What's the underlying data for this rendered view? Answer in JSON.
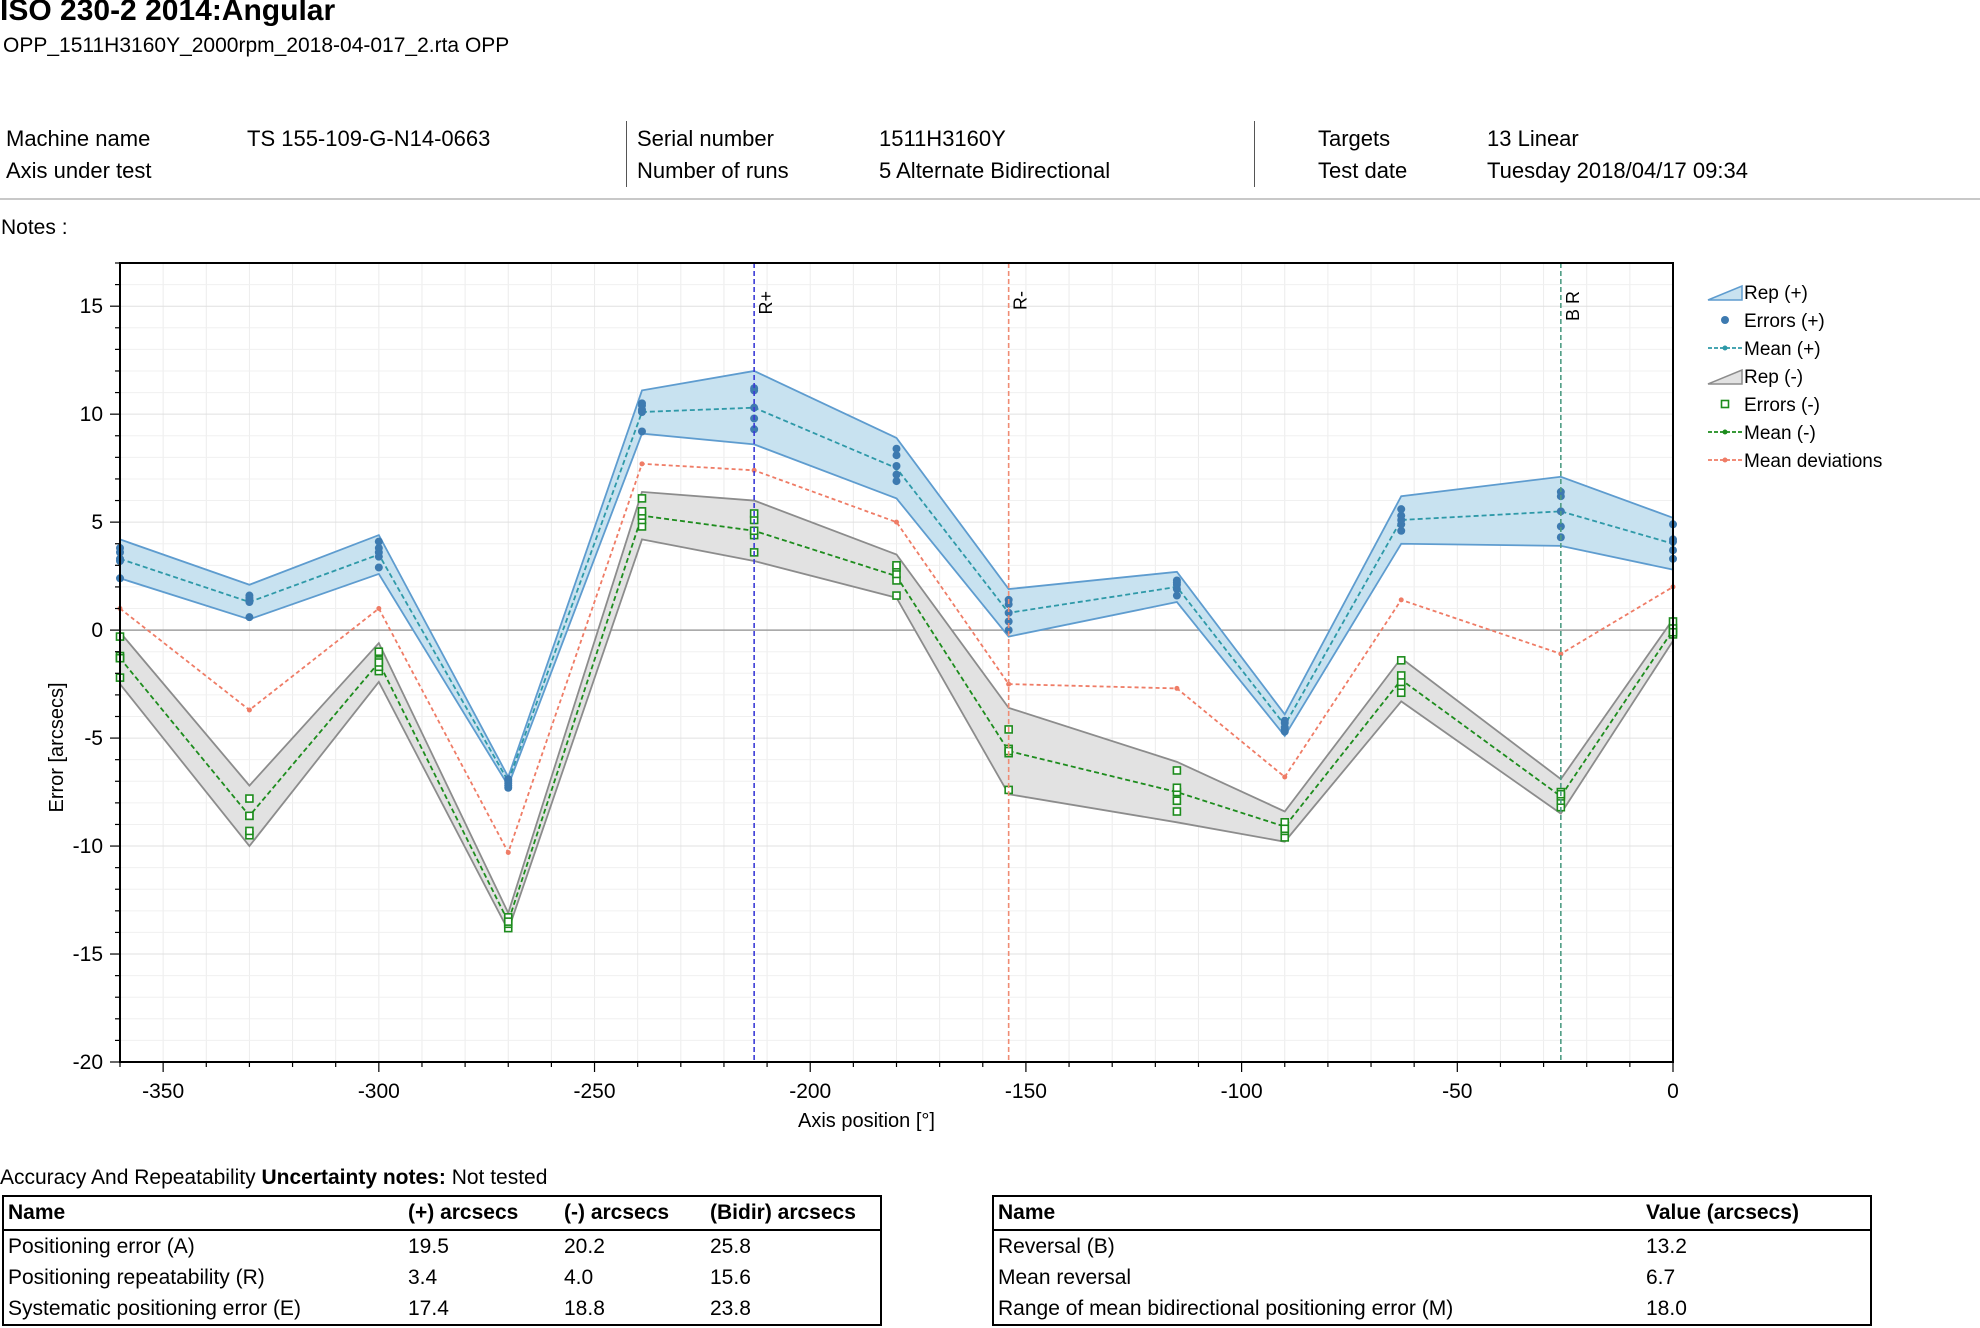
{
  "header": {
    "title": "ISO 230-2 2014:Angular",
    "subtitle": "OPP_1511H3160Y_2000rpm_2018-04-017_2.rta OPP"
  },
  "info": {
    "machine_name_label": "Machine name",
    "machine_name": "TS 155-109-G-N14-0663",
    "axis_label": "Axis under test",
    "serial_label": "Serial number",
    "serial": "1511H3160Y",
    "runs_label": "Number of runs",
    "runs": "5 Alternate Bidirectional",
    "targets_label": "Targets",
    "targets": "13 Linear",
    "date_label": "Test date",
    "date": "Tuesday 2018/04/17 09:34"
  },
  "notes_label": "Notes :",
  "chart_data": {
    "type": "line",
    "xlabel": "Axis position [°]",
    "ylabel": "Error [arcsecs]",
    "xlim": [
      -360,
      0
    ],
    "ylim": [
      -20,
      17
    ],
    "xticks": [
      -350,
      -300,
      -250,
      -200,
      -150,
      -100,
      -50,
      0
    ],
    "yticks": [
      15,
      10,
      5,
      0,
      -5,
      -10,
      -15,
      -20
    ],
    "grid": true,
    "legend_position": "top-right",
    "x": [
      -360,
      -332.3,
      -304.6,
      -276.9,
      -249.2,
      -221.5,
      -193.8,
      -166.2,
      -138.5,
      -110.8,
      -83.1,
      -55.4,
      -27.7,
      0
    ],
    "target_x": [
      -360,
      -330,
      -300,
      -270,
      -239,
      -213,
      -180,
      -154,
      -115,
      -90,
      -63,
      -26,
      0
    ],
    "mean_plus": [
      3.3,
      1.3,
      3.5,
      -7.0,
      10.1,
      10.3,
      7.5,
      0.8,
      2.0,
      -4.4,
      5.1,
      5.5,
      4.0
    ],
    "rep_plus_upper": [
      4.2,
      2.1,
      4.4,
      -6.8,
      11.1,
      12.0,
      8.9,
      1.9,
      2.7,
      -3.9,
      6.2,
      7.1,
      5.2
    ],
    "rep_plus_lower": [
      2.4,
      0.5,
      2.6,
      -7.2,
      9.1,
      8.6,
      6.1,
      -0.3,
      1.3,
      -4.9,
      4.0,
      3.9,
      2.8
    ],
    "errors_plus": [
      [
        2.4,
        3.2,
        3.8,
        3.6,
        3.3
      ],
      [
        0.6,
        1.3,
        1.6,
        1.4,
        1.5
      ],
      [
        2.9,
        3.4,
        3.8,
        4.1,
        3.6
      ],
      [
        -7.3,
        -7.2,
        -7.0,
        -6.9,
        -7.1
      ],
      [
        9.2,
        10.1,
        10.4,
        10.5,
        10.2
      ],
      [
        9.3,
        9.8,
        10.3,
        11.1,
        11.2
      ],
      [
        6.9,
        7.2,
        7.6,
        8.1,
        8.4
      ],
      [
        0.0,
        0.4,
        0.8,
        1.2,
        1.4
      ],
      [
        1.6,
        1.9,
        2.1,
        2.2,
        2.3
      ],
      [
        -4.7,
        -4.5,
        -4.3,
        -4.2,
        -4.6
      ],
      [
        4.6,
        4.9,
        5.1,
        5.3,
        5.6
      ],
      [
        4.3,
        4.8,
        5.5,
        6.2,
        6.4
      ],
      [
        3.3,
        3.7,
        4.1,
        4.2,
        4.9
      ]
    ],
    "mean_minus": [
      -1.3,
      -8.6,
      -1.5,
      -13.5,
      5.3,
      4.6,
      2.5,
      -5.6,
      -7.5,
      -9.1,
      -2.3,
      -7.7,
      0.0
    ],
    "rep_minus_upper": [
      -0.1,
      -7.2,
      -0.6,
      -13.1,
      6.4,
      6.0,
      3.5,
      -3.6,
      -6.1,
      -8.4,
      -1.3,
      -6.9,
      0.5
    ],
    "rep_minus_lower": [
      -2.5,
      -10.0,
      -2.4,
      -13.9,
      4.2,
      3.2,
      1.5,
      -7.6,
      -8.9,
      -9.8,
      -3.3,
      -8.5,
      -0.5
    ],
    "errors_minus": [
      [
        -2.2,
        -1.3,
        -1.2,
        -0.3,
        -1.3
      ],
      [
        -9.5,
        -9.3,
        -8.6,
        -7.8,
        -8.6
      ],
      [
        -1.9,
        -1.7,
        -1.4,
        -1.0,
        -1.5
      ],
      [
        -13.8,
        -13.6,
        -13.4,
        -13.3,
        -13.5
      ],
      [
        4.8,
        5.1,
        5.3,
        5.5,
        6.1
      ],
      [
        3.6,
        4.4,
        4.6,
        5.1,
        5.4
      ],
      [
        1.6,
        2.3,
        2.6,
        2.9,
        3.0
      ],
      [
        -7.4,
        -5.7,
        -5.5,
        -4.6,
        -5.6
      ],
      [
        -8.4,
        -7.9,
        -7.5,
        -7.3,
        -6.5
      ],
      [
        -9.6,
        -9.3,
        -9.1,
        -8.9,
        -9.2
      ],
      [
        -2.6,
        -2.4,
        -2.1,
        -1.4,
        -2.9
      ],
      [
        -8.2,
        -7.9,
        -7.7,
        -7.5,
        -7.6
      ],
      [
        -0.2,
        0.0,
        0.1,
        0.4,
        -0.1
      ]
    ],
    "mean_deviations": [
      1.0,
      -3.7,
      1.0,
      -10.3,
      7.7,
      7.4,
      5.0,
      -2.5,
      -2.7,
      -6.8,
      1.4,
      -1.1,
      2.0
    ],
    "markers": [
      {
        "label": "R+",
        "x": -213,
        "color": "#3b3bd6"
      },
      {
        "label": "R-",
        "x": -154,
        "color": "#ef8c74"
      },
      {
        "label": "B R",
        "x": -26,
        "color": "#4e9c84"
      }
    ],
    "legend": [
      {
        "name": "Rep (+)",
        "kind": "band",
        "color": "#5e9ccf",
        "fill": "#c8e2f0"
      },
      {
        "name": "Errors (+)",
        "kind": "dot",
        "color": "#3d7ab0"
      },
      {
        "name": "Mean (+)",
        "kind": "line",
        "color": "#2e99a8"
      },
      {
        "name": "Rep (-)",
        "kind": "band",
        "color": "#8c8c8c",
        "fill": "#e2e2e2"
      },
      {
        "name": "Errors (-)",
        "kind": "square",
        "color": "#1d8c1d"
      },
      {
        "name": "Mean (-)",
        "kind": "line",
        "color": "#1d8c1d"
      },
      {
        "name": "Mean deviations",
        "kind": "line",
        "color": "#ef7c66"
      }
    ]
  },
  "accuracy": {
    "prefix": "Accuracy And Repeatability ",
    "uncert_label": "Uncertainty notes:",
    "uncert_value": " Not tested"
  },
  "table1": {
    "headers": [
      "Name",
      "(+) arcsecs",
      "(-) arcsecs",
      "(Bidir) arcsecs"
    ],
    "rows": [
      [
        "Positioning error (A)",
        "19.5",
        "20.2",
        "25.8"
      ],
      [
        "Positioning repeatability (R)",
        "3.4",
        "4.0",
        "15.6"
      ],
      [
        "Systematic positioning error (E)",
        "17.4",
        "18.8",
        "23.8"
      ]
    ]
  },
  "table2": {
    "headers": [
      "Name",
      "Value (arcsecs)"
    ],
    "rows": [
      [
        "Reversal (B)",
        "13.2"
      ],
      [
        "Mean reversal",
        "6.7"
      ],
      [
        "Range of mean bidirectional positioning error (M)",
        "18.0"
      ]
    ]
  }
}
